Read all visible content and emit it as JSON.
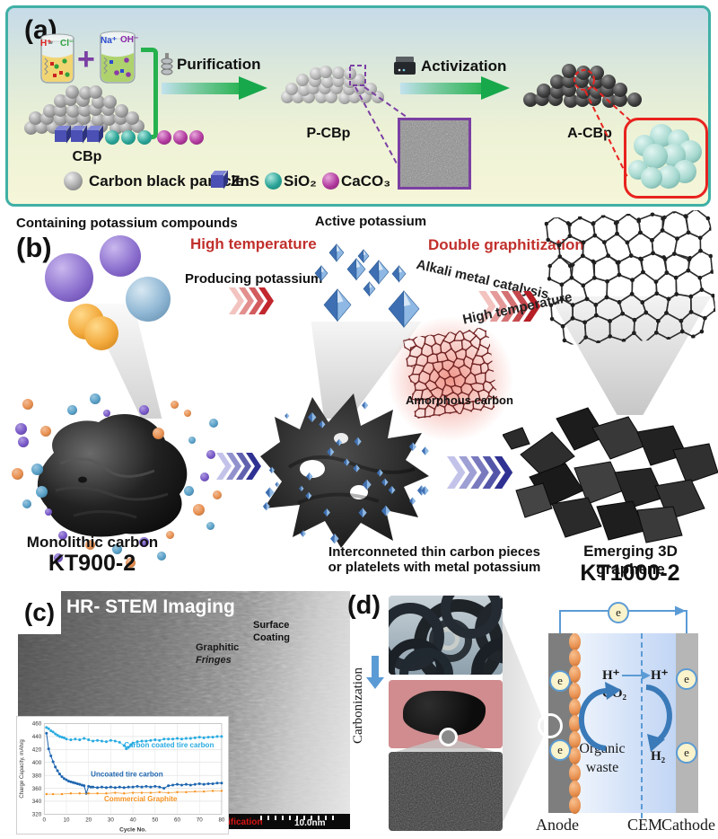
{
  "panel_a": {
    "label": "(a)",
    "beaker1_ion1": "H⁺",
    "beaker1_ion2": "Cl⁻",
    "beaker2_ion1": "Na⁺",
    "beaker2_ion2": "OH⁻",
    "plus": "+",
    "purification": "Purification",
    "activization": "Activization",
    "cbp": "CBp",
    "pcbp": "P-CBp",
    "acbp": "A-CBp",
    "legend": [
      {
        "label": "Carbon black particle",
        "swatch": "gray-sphere",
        "color": "#9e9e9e"
      },
      {
        "label": "ZnS",
        "swatch": "blue-cube",
        "color": "#4a50b4"
      },
      {
        "label": "SiO₂",
        "swatch": "teal-sphere",
        "color": "#2aa396"
      },
      {
        "label": "CaCO₃",
        "swatch": "magenta-sphere",
        "color": "#b13a9e"
      }
    ]
  },
  "panel_b": {
    "label": "(b)",
    "caption": "Containing potassium compounds",
    "high_temperature": "High temperature",
    "producing_potassium": "Producing potassium",
    "active_potassium": "Active potassium",
    "double_graphitization": "Double graphitization",
    "alkali_metal_catalysis": "Alkali metal catalysis",
    "high_temperature2": "High temperature",
    "amorphous_carbon": "Amorphous carbon",
    "monolithic_carbon": "Monolithic carbon",
    "kt900": "KT900-2",
    "mid_caption_line1": "Interconneted thin carbon pieces",
    "mid_caption_line2": "or platelets with metal potassium",
    "emerging": "Emerging 3D graphene",
    "kt1000": "KT1000-2"
  },
  "panel_c": {
    "label": "(c)",
    "title": "HR- STEM Imaging",
    "surface": [
      "Surface",
      "Coating"
    ],
    "graphitic": [
      "Graphitic",
      "Fringes"
    ],
    "mag_fragment": "nification",
    "scale_bar": "10.0nm"
  },
  "panel_d": {
    "label": "(d)",
    "carbonization": "Carbonization",
    "electron": "e",
    "h_plus": "H⁺",
    "co2": "CO₂",
    "h2": "H₂",
    "organic": [
      "Organic",
      "waste"
    ],
    "anode": "Anode",
    "cem": "CEM",
    "cathode": "Cathode"
  },
  "colors": {
    "panel_border_teal": "#3fb0a6",
    "arrow_green": "#2db457",
    "purple_accent": "#7b3fa3",
    "red_accent": "#e8231f",
    "red_text": "#c1302c",
    "crystal_blue": "#4a7fc0",
    "wire_blue": "#5b9bd5"
  },
  "chart_data": {
    "type": "scatter",
    "title": "",
    "xlabel": "Cycle No.",
    "ylabel": "Charge Capacity, mAh/g",
    "xlim": [
      0,
      80
    ],
    "ylim": [
      320,
      460
    ],
    "xtick_step": 10,
    "ytick_step": 20,
    "grid": true,
    "legend_position": "in-plot annotations",
    "series": [
      {
        "name": "Carbon coated tire carbon",
        "color": "#29abe2",
        "points": [
          [
            1,
            454
          ],
          [
            2,
            452
          ],
          [
            3,
            449
          ],
          [
            4,
            447
          ],
          [
            5,
            444
          ],
          [
            6,
            442
          ],
          [
            7,
            440
          ],
          [
            8,
            439
          ],
          [
            9,
            438
          ],
          [
            10,
            436
          ],
          [
            12,
            435
          ],
          [
            14,
            436
          ],
          [
            16,
            435
          ],
          [
            18,
            437
          ],
          [
            20,
            435
          ],
          [
            22,
            433
          ],
          [
            24,
            434
          ],
          [
            26,
            433
          ],
          [
            28,
            432
          ],
          [
            30,
            434
          ],
          [
            32,
            433
          ],
          [
            34,
            431
          ],
          [
            36,
            426
          ],
          [
            37,
            421
          ],
          [
            38,
            423
          ],
          [
            39,
            427
          ],
          [
            40,
            430
          ],
          [
            42,
            432
          ],
          [
            44,
            433
          ],
          [
            46,
            433
          ],
          [
            48,
            434
          ],
          [
            50,
            435
          ],
          [
            52,
            434
          ],
          [
            54,
            436
          ],
          [
            56,
            436
          ],
          [
            58,
            436
          ],
          [
            60,
            437
          ],
          [
            62,
            436
          ],
          [
            64,
            437
          ],
          [
            66,
            437
          ],
          [
            68,
            438
          ],
          [
            70,
            439
          ],
          [
            72,
            438
          ],
          [
            74,
            439
          ],
          [
            76,
            439
          ],
          [
            78,
            440
          ],
          [
            80,
            440
          ]
        ]
      },
      {
        "name": "Uncoated tire carbon",
        "color": "#1f66b0",
        "points": [
          [
            1,
            445
          ],
          [
            2,
            421
          ],
          [
            3,
            410
          ],
          [
            4,
            401
          ],
          [
            5,
            393
          ],
          [
            6,
            387
          ],
          [
            7,
            382
          ],
          [
            8,
            378
          ],
          [
            9,
            375
          ],
          [
            10,
            373
          ],
          [
            11,
            371
          ],
          [
            12,
            370
          ],
          [
            13,
            369
          ],
          [
            14,
            368
          ],
          [
            15,
            367
          ],
          [
            16,
            366
          ],
          [
            17,
            365
          ],
          [
            18,
            364
          ],
          [
            19,
            352
          ],
          [
            20,
            363
          ],
          [
            21,
            362
          ],
          [
            22,
            362
          ],
          [
            24,
            361
          ],
          [
            26,
            362
          ],
          [
            28,
            361
          ],
          [
            30,
            362
          ],
          [
            32,
            361
          ],
          [
            34,
            362
          ],
          [
            36,
            361
          ],
          [
            38,
            362
          ],
          [
            40,
            362
          ],
          [
            42,
            363
          ],
          [
            44,
            362
          ],
          [
            46,
            363
          ],
          [
            48,
            362
          ],
          [
            50,
            363
          ],
          [
            52,
            362
          ],
          [
            54,
            360
          ],
          [
            56,
            364
          ],
          [
            58,
            365
          ],
          [
            60,
            366
          ],
          [
            62,
            365
          ],
          [
            64,
            366
          ],
          [
            66,
            365
          ],
          [
            68,
            366
          ],
          [
            70,
            367
          ],
          [
            72,
            366
          ],
          [
            74,
            367
          ],
          [
            76,
            367
          ],
          [
            78,
            368
          ],
          [
            80,
            368
          ]
        ]
      },
      {
        "name": "Commercial Graphite",
        "color": "#f6921e",
        "points": [
          [
            1,
            351
          ],
          [
            4,
            351
          ],
          [
            8,
            351
          ],
          [
            12,
            352
          ],
          [
            16,
            352
          ],
          [
            20,
            352
          ],
          [
            24,
            352
          ],
          [
            28,
            352
          ],
          [
            32,
            353
          ],
          [
            36,
            352
          ],
          [
            40,
            353
          ],
          [
            44,
            353
          ],
          [
            48,
            353
          ],
          [
            52,
            354
          ],
          [
            56,
            353
          ],
          [
            60,
            354
          ],
          [
            64,
            354
          ],
          [
            68,
            355
          ],
          [
            72,
            355
          ],
          [
            76,
            356
          ],
          [
            80,
            356
          ]
        ]
      }
    ]
  }
}
